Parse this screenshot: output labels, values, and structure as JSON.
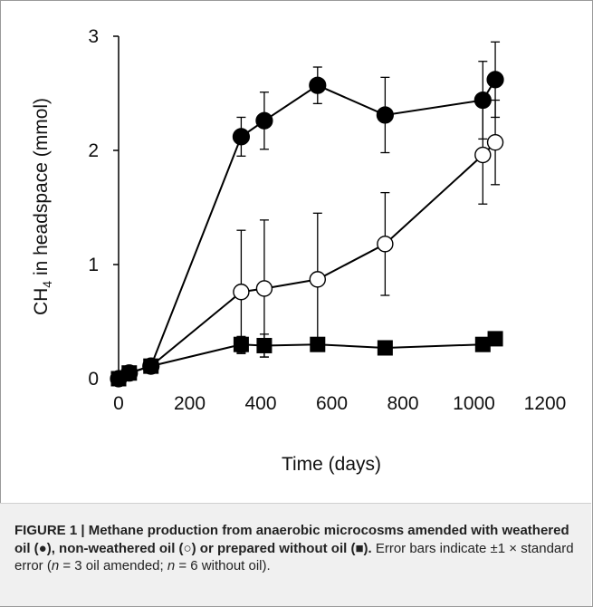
{
  "chart_data": {
    "type": "line",
    "xlabel": "Time (days)",
    "ylabel_main": "CH",
    "ylabel_sub": "4",
    "ylabel_rest": " in headspace (mmol)",
    "xlim": [
      0,
      1200
    ],
    "ylim": [
      0,
      3
    ],
    "x_ticks": [
      0,
      200,
      400,
      600,
      800,
      1000,
      1200
    ],
    "y_ticks": [
      0,
      1,
      2,
      3
    ],
    "series": [
      {
        "name": "weathered oil",
        "marker": "filled-circle",
        "color": "#000000",
        "points": [
          {
            "x": 0,
            "y": 0.0,
            "err": 0
          },
          {
            "x": 30,
            "y": 0.05,
            "err": 0
          },
          {
            "x": 91,
            "y": 0.11,
            "err": 0
          },
          {
            "x": 345,
            "y": 2.12,
            "err": 0.17
          },
          {
            "x": 410,
            "y": 2.26,
            "err": 0.25
          },
          {
            "x": 560,
            "y": 2.57,
            "err": 0.16
          },
          {
            "x": 750,
            "y": 2.31,
            "err": 0.33
          },
          {
            "x": 1025,
            "y": 2.44,
            "err": 0.34
          },
          {
            "x": 1060,
            "y": 2.62,
            "err": 0.33
          }
        ]
      },
      {
        "name": "non-weathered oil",
        "marker": "open-circle",
        "color": "#000000",
        "points": [
          {
            "x": 0,
            "y": 0.0,
            "err": 0
          },
          {
            "x": 30,
            "y": 0.05,
            "err": 0
          },
          {
            "x": 91,
            "y": 0.11,
            "err": 0
          },
          {
            "x": 345,
            "y": 0.76,
            "err": 0.54
          },
          {
            "x": 410,
            "y": 0.79,
            "err": 0.6
          },
          {
            "x": 560,
            "y": 0.87,
            "err": 0.58
          },
          {
            "x": 750,
            "y": 1.18,
            "err": 0.45
          },
          {
            "x": 1025,
            "y": 1.96,
            "err": 0.43
          },
          {
            "x": 1060,
            "y": 2.07,
            "err": 0.37
          }
        ]
      },
      {
        "name": "without oil",
        "marker": "filled-square",
        "color": "#000000",
        "points": [
          {
            "x": 0,
            "y": 0.0,
            "err": 0
          },
          {
            "x": 30,
            "y": 0.05,
            "err": 0
          },
          {
            "x": 91,
            "y": 0.11,
            "err": 0
          },
          {
            "x": 345,
            "y": 0.3,
            "err": 0.07
          },
          {
            "x": 410,
            "y": 0.29,
            "err": 0.1
          },
          {
            "x": 560,
            "y": 0.3,
            "err": 0
          },
          {
            "x": 750,
            "y": 0.27,
            "err": 0
          },
          {
            "x": 1025,
            "y": 0.3,
            "err": 0
          },
          {
            "x": 1060,
            "y": 0.35,
            "err": 0
          }
        ]
      }
    ]
  },
  "caption": {
    "bold": "FIGURE 1 | Methane production from anaerobic microcosms amended with weathered oil (●), non-weathered oil (○) or prepared without oil (■).",
    "rest_1": " Error bars indicate ±1 × standard error (",
    "n_italic_1": "n",
    "rest_2": " = 3 oil amended; ",
    "n_italic_2": "n",
    "rest_3": " = 6 without oil)."
  }
}
